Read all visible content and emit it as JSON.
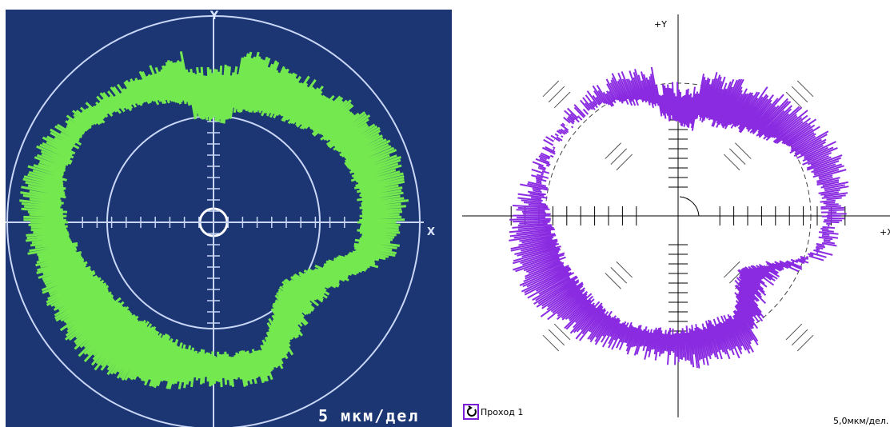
{
  "left_panel": {
    "y_axis_label": "Y",
    "x_axis_label": "X",
    "scale_label": "5 мкм/дел"
  },
  "right_panel": {
    "y_axis_label": "+Y",
    "x_axis_label": "+X",
    "pass_label": "Проход 1",
    "scale_label": "5,0мкм/дел."
  }
}
